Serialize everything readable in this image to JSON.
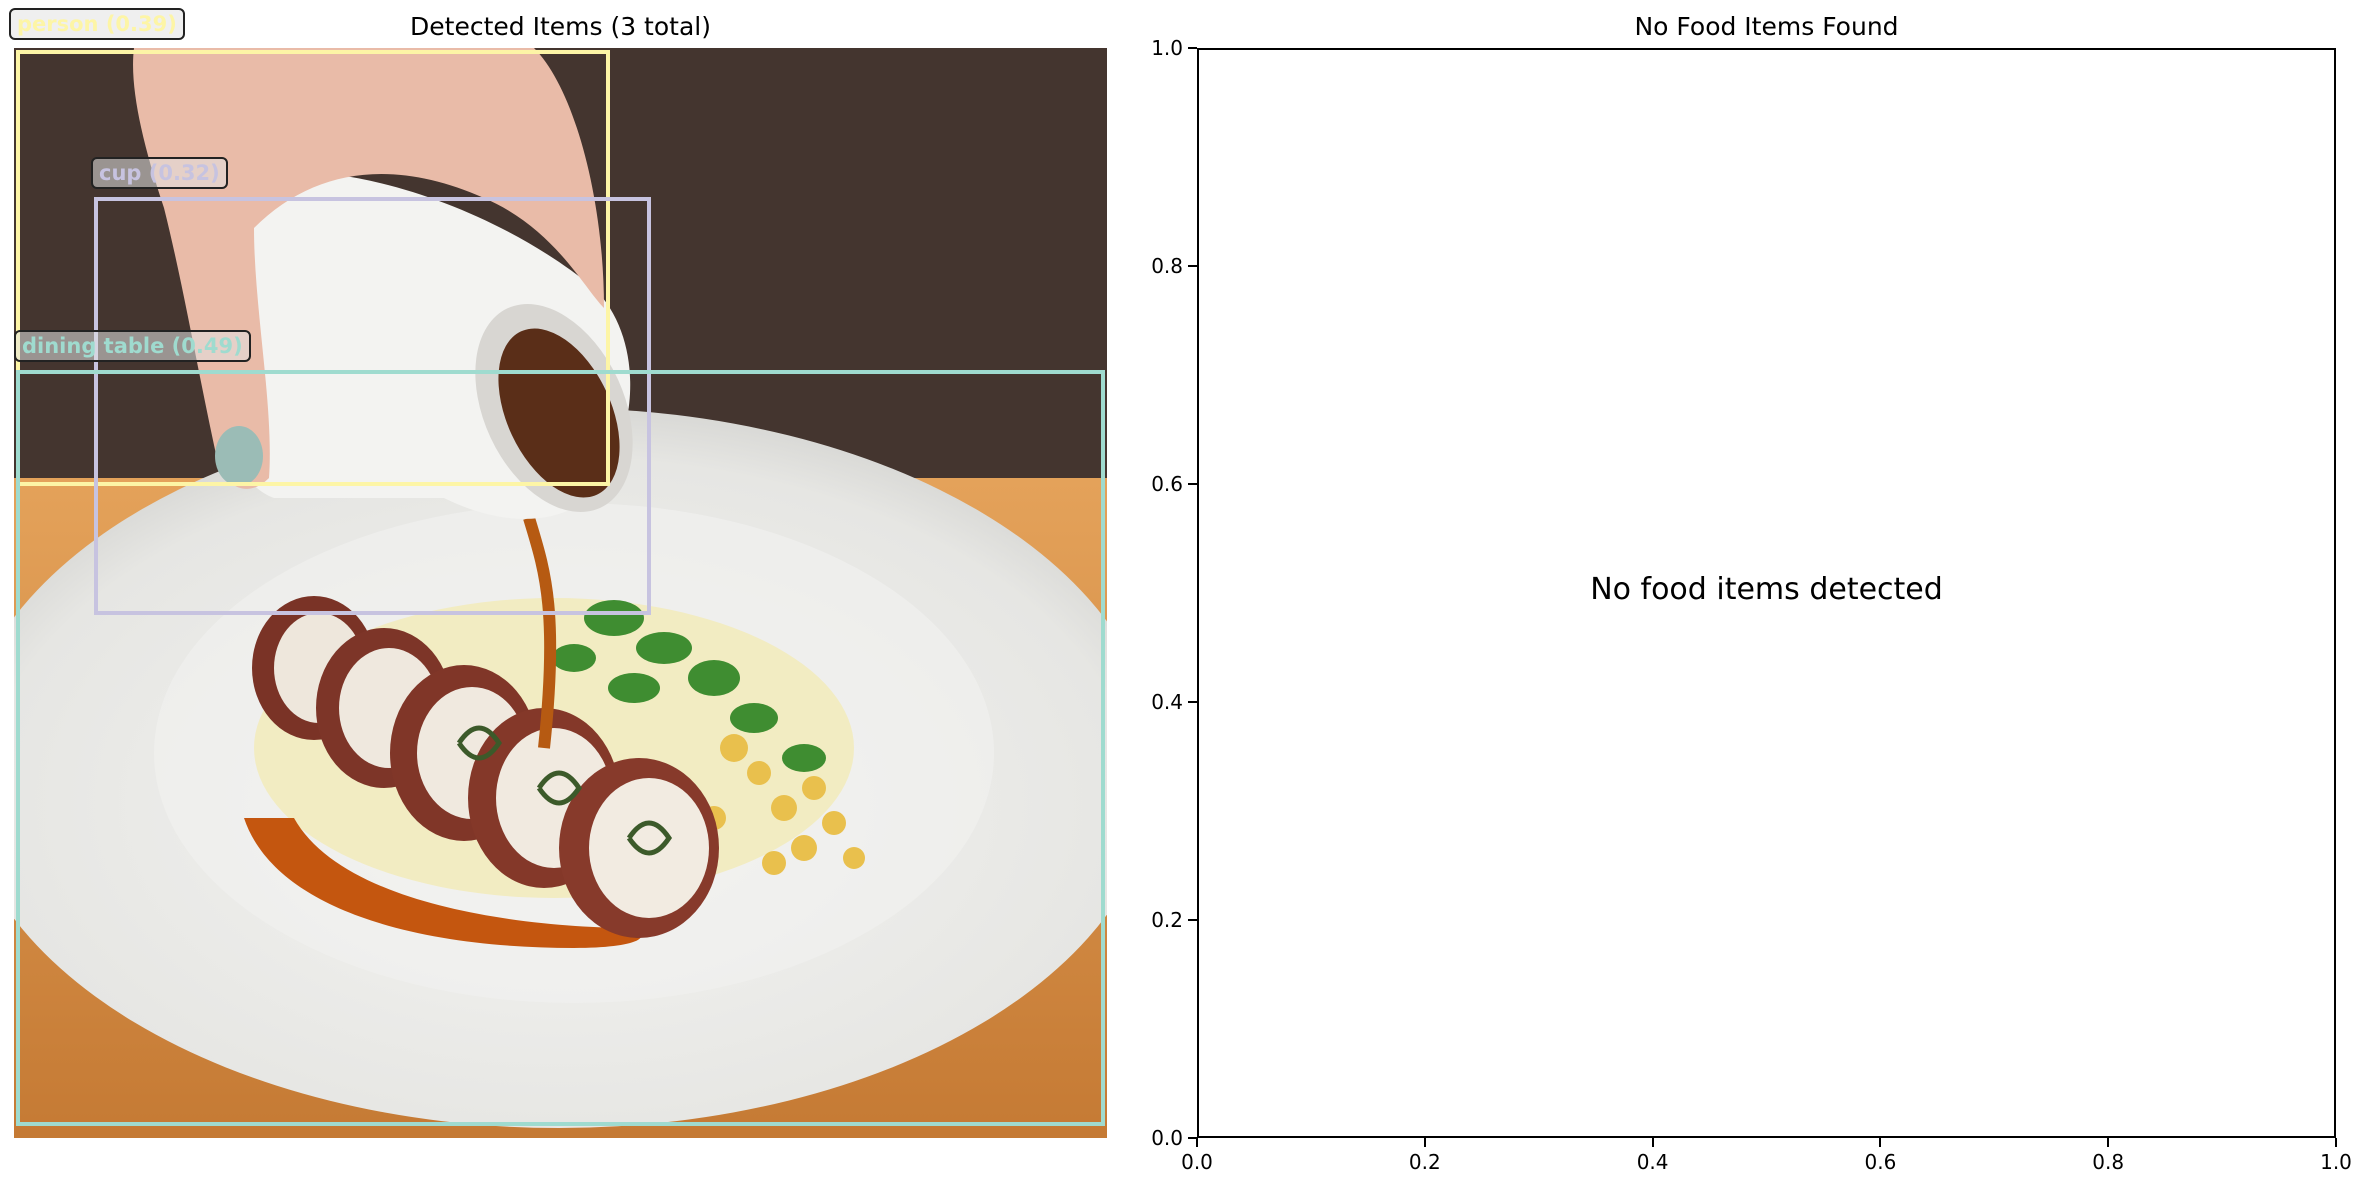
{
  "chart_data": [
    {
      "type": "image-detection",
      "title": "Detected Items (3 total)",
      "detections": [
        {
          "label": "person (0.39)",
          "class": "person",
          "score": 0.39,
          "color": "#fdf5a6"
        },
        {
          "label": "cup (0.32)",
          "class": "cup",
          "score": 0.32,
          "color": "#c7c3e0"
        },
        {
          "label": "dining table (0.49)",
          "class": "dining table",
          "score": 0.49,
          "color": "#9fdbcf"
        }
      ]
    },
    {
      "type": "scatter",
      "title": "No Food Items Found",
      "message": "No food items detected",
      "xlim": [
        0.0,
        1.0
      ],
      "ylim": [
        0.0,
        1.0
      ],
      "x_ticks": [
        "0.0",
        "0.2",
        "0.4",
        "0.6",
        "0.8",
        "1.0"
      ],
      "y_ticks": [
        "0.0",
        "0.2",
        "0.4",
        "0.6",
        "0.8",
        "1.0"
      ],
      "grid": false
    }
  ]
}
